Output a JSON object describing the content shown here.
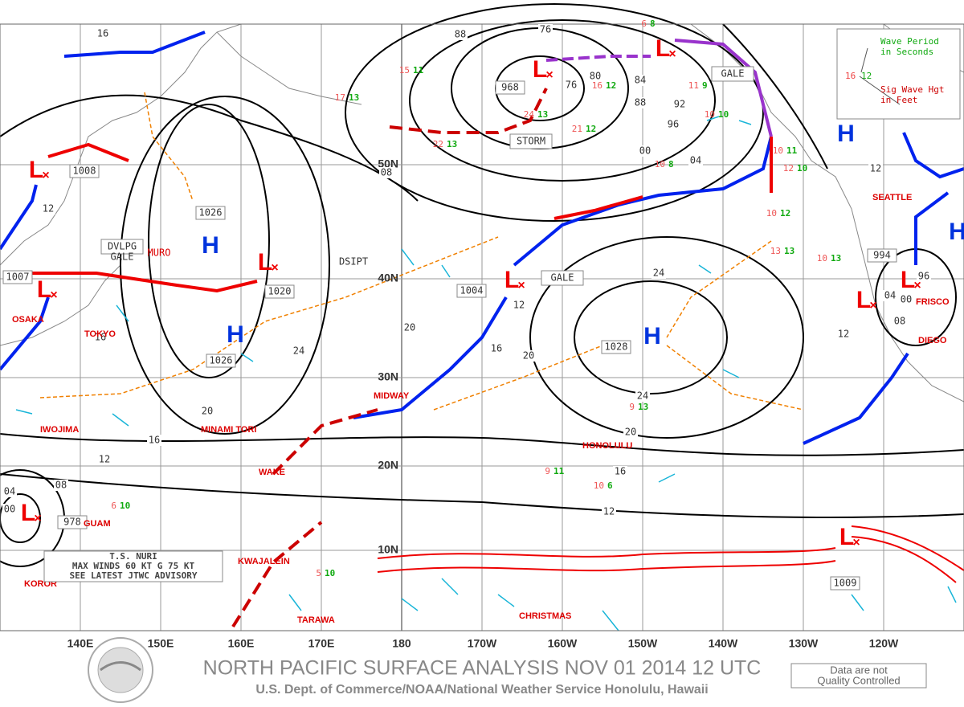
{
  "header": {
    "title": "NORTH PACIFIC SURFACE ANALYSIS NOV 01 2014 12 UTC",
    "subtitle": "U.S. Dept. of Commerce/NOAA/National Weather Service Honolulu, Hawaii",
    "disclaimer": [
      "Data are not",
      "Quality Controlled"
    ]
  },
  "legend": {
    "period_label": [
      "Wave Period",
      "in Seconds"
    ],
    "height_label": [
      "Sig Wave Hgt",
      "in Feet"
    ],
    "sample_height": 16,
    "sample_period": 12
  },
  "longitudes": [
    "140E",
    "150E",
    "160E",
    "170E",
    "180",
    "170W",
    "160W",
    "150W",
    "140W",
    "130W",
    "120W"
  ],
  "latitudes": [
    "50N",
    "40N",
    "30N",
    "20N",
    "10N"
  ],
  "systems": [
    {
      "symbol": "L",
      "pressure": 1008
    },
    {
      "symbol": "L",
      "pressure": 1007
    },
    {
      "symbol": "H",
      "pressure": 1026
    },
    {
      "symbol": "L",
      "pressure": 1020
    },
    {
      "symbol": "H",
      "pressure": 1026
    },
    {
      "symbol": "L",
      "pressure": 1004
    },
    {
      "symbol": "H",
      "pressure": 1028
    },
    {
      "symbol": "L",
      "pressure": 968
    },
    {
      "symbol": "L",
      "pressure": 994
    },
    {
      "symbol": "L",
      "pressure": 978
    },
    {
      "symbol": "L",
      "pressure": 1009
    },
    {
      "symbol": "L"
    },
    {
      "symbol": "H"
    },
    {
      "symbol": "L"
    },
    {
      "symbol": "H"
    }
  ],
  "isobar_labels": [
    "16",
    "12",
    "16",
    "20",
    "24",
    "16",
    "12",
    "08",
    "04",
    "00",
    "20",
    "16",
    "20",
    "12",
    "24",
    "24",
    "20",
    "16",
    "12",
    "88",
    "76",
    "80",
    "84",
    "88",
    "92",
    "96",
    "00",
    "04",
    "08",
    "12",
    "08",
    "96",
    "04",
    "12",
    "76",
    "00"
  ],
  "places": [
    "OSAKA",
    "TOKYO",
    "IWOJIMA",
    "MINAMI TORI",
    "MIDWAY",
    "WAKE",
    "GUAM",
    "KWAJALEIN",
    "KOROR",
    "TARAWA",
    "CHRISTMAS",
    "HONOLULU",
    "SEATTLE",
    "FRISCO",
    "DIEGO"
  ],
  "warnings": [
    "STORM",
    "GALE",
    "GALE",
    "DVLPG",
    "GALE",
    "DSIPT",
    "MURO"
  ],
  "storm_box": [
    "T.S. NURI",
    "MAX WINDS 60 KT G 75 KT",
    "SEE LATEST JTWC ADVISORY"
  ],
  "wave_obs": [
    [
      17,
      13
    ],
    [
      22,
      13
    ],
    [
      24,
      13
    ],
    [
      21,
      12
    ],
    [
      16,
      12
    ],
    [
      15,
      11
    ],
    [
      10,
      10
    ],
    [
      10,
      8
    ],
    [
      12,
      10
    ],
    [
      9,
      13
    ],
    [
      10,
      13
    ],
    [
      5,
      10
    ],
    [
      6,
      10
    ],
    [
      9,
      11
    ],
    [
      10,
      6
    ],
    [
      13,
      13
    ],
    [
      10,
      12
    ],
    [
      6,
      8
    ],
    [
      10,
      11
    ],
    [
      11,
      9
    ]
  ]
}
